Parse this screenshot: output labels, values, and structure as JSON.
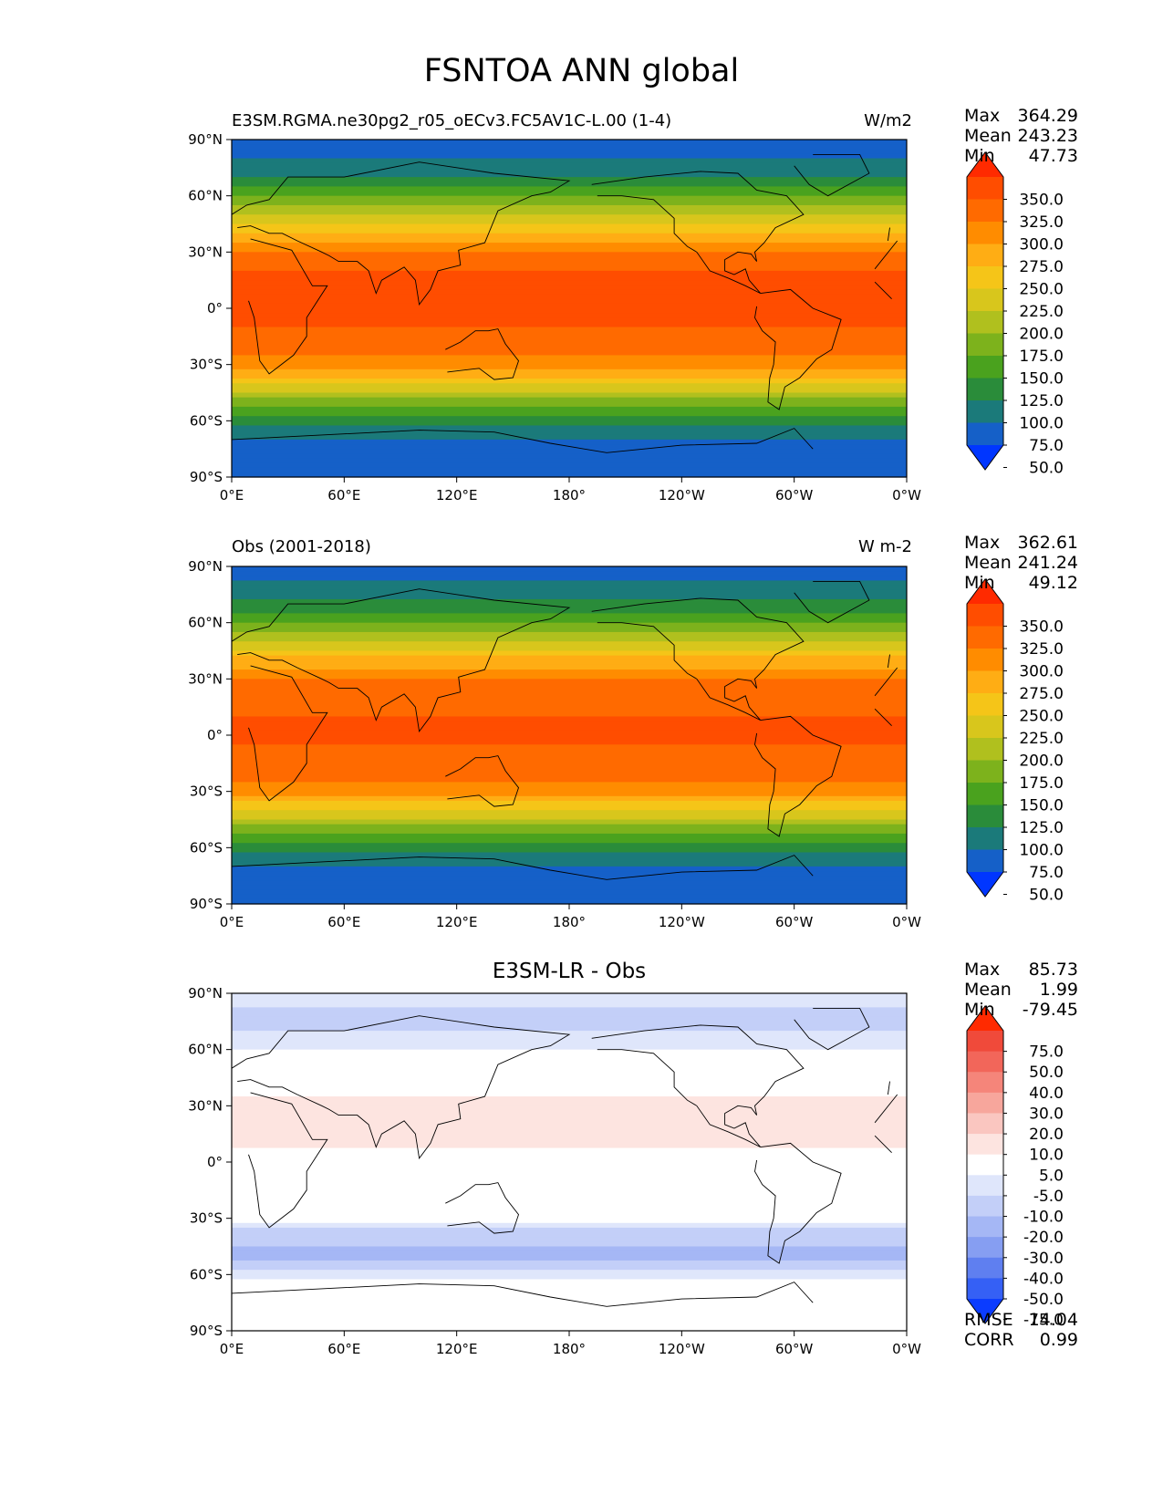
{
  "title": "FSNTOA ANN global",
  "chart_data": [
    {
      "type": "heatmap",
      "panel": "test",
      "title_left": "E3SM.RGMA.ne30pg2_r05_oECv3.FC5AV1C-L.00 (1-4)",
      "title_right": "W/m2",
      "stats": {
        "Max": "364.29",
        "Mean": "243.23",
        "Min": "47.73"
      },
      "xticks": [
        "0°E",
        "60°E",
        "120°E",
        "180°",
        "120°W",
        "60°W",
        "0°W"
      ],
      "yticks": [
        "90°N",
        "60°N",
        "30°N",
        "0°",
        "30°S",
        "60°S",
        "90°S"
      ],
      "xlim": [
        0,
        360
      ],
      "ylim": [
        -90,
        90
      ],
      "colorbar_levels": [
        "350.0",
        "325.0",
        "300.0",
        "275.0",
        "250.0",
        "225.0",
        "200.0",
        "175.0",
        "150.0",
        "125.0",
        "100.0",
        "75.0",
        "50.0"
      ],
      "colorbar_colors": [
        "#ff2a00",
        "#ff4d00",
        "#ff6a00",
        "#ff8c00",
        "#ffad14",
        "#f5c518",
        "#d8c61c",
        "#b0c01e",
        "#7db21c",
        "#4aa21e",
        "#2a8c3a",
        "#1b7a7a",
        "#1560c8",
        "#0036ff"
      ],
      "lat_profile": [
        [
          90,
          62
        ],
        [
          80,
          75
        ],
        [
          70,
          100
        ],
        [
          60,
          150
        ],
        [
          50,
          200
        ],
        [
          40,
          255
        ],
        [
          30,
          300
        ],
        [
          20,
          325
        ],
        [
          10,
          330
        ],
        [
          0,
          330
        ],
        [
          -10,
          325
        ],
        [
          -20,
          315
        ],
        [
          -30,
          285
        ],
        [
          -40,
          230
        ],
        [
          -50,
          160
        ],
        [
          -60,
          110
        ],
        [
          -70,
          70
        ],
        [
          -80,
          62
        ],
        [
          -90,
          55
        ]
      ]
    },
    {
      "type": "heatmap",
      "panel": "reference",
      "title_left": "Obs (2001-2018)",
      "title_right": "W m-2",
      "stats": {
        "Max": "362.61",
        "Mean": "241.24",
        "Min": "49.12"
      },
      "xticks": [
        "0°E",
        "60°E",
        "120°E",
        "180°",
        "120°W",
        "60°W",
        "0°W"
      ],
      "yticks": [
        "90°N",
        "60°N",
        "30°N",
        "0°",
        "30°S",
        "60°S",
        "90°S"
      ],
      "xlim": [
        0,
        360
      ],
      "ylim": [
        -90,
        90
      ],
      "colorbar_levels": [
        "350.0",
        "325.0",
        "300.0",
        "275.0",
        "250.0",
        "225.0",
        "200.0",
        "175.0",
        "150.0",
        "125.0",
        "100.0",
        "75.0",
        "50.0"
      ],
      "colorbar_colors": [
        "#ff2a00",
        "#ff4d00",
        "#ff6a00",
        "#ff8c00",
        "#ffad14",
        "#f5c518",
        "#d8c61c",
        "#b0c01e",
        "#7db21c",
        "#4aa21e",
        "#2a8c3a",
        "#1b7a7a",
        "#1560c8",
        "#0036ff"
      ],
      "lat_profile": [
        [
          90,
          65
        ],
        [
          80,
          78
        ],
        [
          70,
          105
        ],
        [
          60,
          155
        ],
        [
          50,
          205
        ],
        [
          40,
          258
        ],
        [
          30,
          298
        ],
        [
          20,
          318
        ],
        [
          10,
          325
        ],
        [
          0,
          328
        ],
        [
          -10,
          322
        ],
        [
          -20,
          312
        ],
        [
          -30,
          282
        ],
        [
          -40,
          228
        ],
        [
          -50,
          160
        ],
        [
          -60,
          112
        ],
        [
          -70,
          72
        ],
        [
          -80,
          64
        ],
        [
          -90,
          60
        ]
      ]
    },
    {
      "type": "heatmap",
      "panel": "difference",
      "title_center": "E3SM-LR - Obs",
      "stats": {
        "Max": "85.73",
        "Mean": "1.99",
        "Min": "-79.45"
      },
      "metrics": {
        "RMSE": "14.04",
        "CORR": "0.99"
      },
      "xticks": [
        "0°E",
        "60°E",
        "120°E",
        "180°",
        "120°W",
        "60°W",
        "0°W"
      ],
      "yticks": [
        "90°N",
        "60°N",
        "30°N",
        "0°",
        "30°S",
        "60°S",
        "90°S"
      ],
      "xlim": [
        0,
        360
      ],
      "ylim": [
        -90,
        90
      ],
      "colorbar_levels": [
        "75.0",
        "50.0",
        "40.0",
        "30.0",
        "20.0",
        "10.0",
        "5.0",
        "-5.0",
        "-10.0",
        "-20.0",
        "-30.0",
        "-40.0",
        "-50.0",
        "-75.0"
      ],
      "colorbar_colors": [
        "#ff2a00",
        "#f04a3a",
        "#f2665a",
        "#f5857a",
        "#f7a69c",
        "#fac6c0",
        "#fde4e0",
        "#ffffff",
        "#dfe6fb",
        "#c3cff8",
        "#a5b7f5",
        "#869ef2",
        "#5f7ff0",
        "#3560f5",
        "#0b3cff"
      ],
      "lat_profile": [
        [
          90,
          -5
        ],
        [
          80,
          -12
        ],
        [
          70,
          -10
        ],
        [
          60,
          -6
        ],
        [
          50,
          3
        ],
        [
          40,
          4
        ],
        [
          30,
          6
        ],
        [
          20,
          8
        ],
        [
          10,
          6
        ],
        [
          0,
          3
        ],
        [
          -10,
          2
        ],
        [
          -20,
          4
        ],
        [
          -30,
          1
        ],
        [
          -40,
          -18
        ],
        [
          -50,
          -22
        ],
        [
          -60,
          -8
        ],
        [
          -70,
          1
        ],
        [
          -80,
          2
        ],
        [
          -90,
          0
        ]
      ]
    }
  ]
}
